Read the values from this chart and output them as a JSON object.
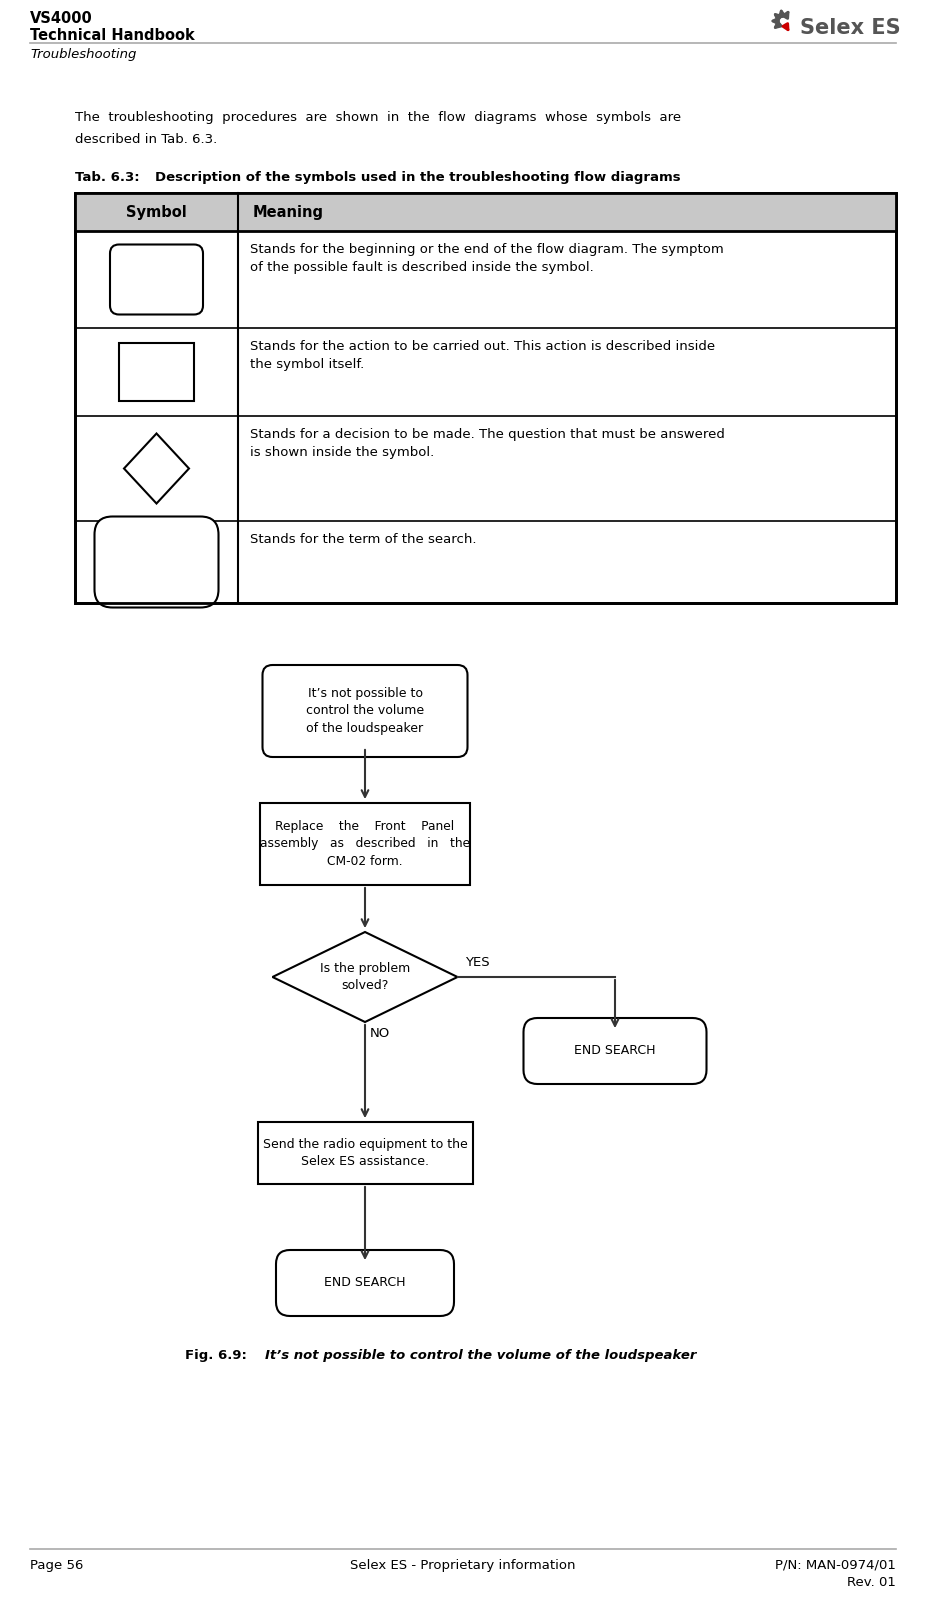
{
  "bg_color": "#ffffff",
  "header_line_color": "#aaaaaa",
  "footer_line_color": "#aaaaaa",
  "text_color": "#000000",
  "table_border_color": "#000000",
  "table_header_bg": "#c8c8c8",
  "intro_text_line1": "The  troubleshooting  procedures  are  shown  in  the  flow  diagrams  whose  symbols  are",
  "intro_text_line2": "described in Tab. 6.3.",
  "table_caption_label": "Tab. 6.3:",
  "table_caption_desc": "Description of the symbols used in the troubleshooting flow diagrams",
  "table_header_symbol": "Symbol",
  "table_header_meaning": "Meaning",
  "table_rows": [
    {
      "shape": "rounded_rect",
      "meaning_line1": "Stands for the beginning or the end of the flow diagram. The symptom",
      "meaning_line2": "of the possible fault is described inside the symbol."
    },
    {
      "shape": "rect",
      "meaning_line1": "Stands for the action to be carried out. This action is described inside",
      "meaning_line2": "the symbol itself."
    },
    {
      "shape": "diamond",
      "meaning_line1": "Stands for a decision to be made. The question that must be answered",
      "meaning_line2": "is shown inside the symbol."
    },
    {
      "shape": "stadium",
      "meaning_line1": "Stands for the term of the search.",
      "meaning_line2": ""
    }
  ],
  "flow_start_text": "It’s not possible to\ncontrol the volume\nof the loudspeaker",
  "flow_act1_text": "Replace    the    Front    Panel\nassembly   as   described   in   the\nCM-02 form.",
  "flow_dec_text": "Is the problem\nsolved?",
  "flow_yes_label": "YES",
  "flow_no_label": "NO",
  "flow_end_search": "END SEARCH",
  "flow_act2_text": "Send the radio equipment to the\nSelex ES assistance.",
  "fig_caption_label": "Fig. 6.9:",
  "fig_caption_text": "It’s not possible to control the volume of the loudspeaker",
  "footer_page": "Page 56",
  "footer_center": "Selex ES - Proprietary information",
  "footer_right_line1": "P/N: MAN-0974/01",
  "footer_right_line2": "Rev. 01"
}
